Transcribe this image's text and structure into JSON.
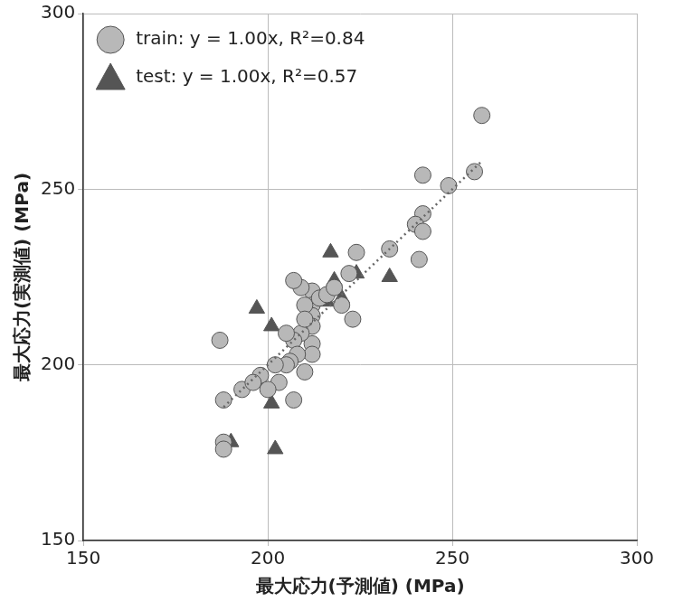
{
  "chart_data": {
    "type": "scatter",
    "x_label": "最大応力(予測値) (MPa)",
    "y_label": "最大応力(実測値) (MPa)",
    "xlim": [
      150,
      300
    ],
    "ylim": [
      150,
      300
    ],
    "xticks": [
      150,
      200,
      250,
      300
    ],
    "yticks": [
      150,
      200,
      250,
      300
    ],
    "grid": true,
    "legend": "upper left",
    "series": [
      {
        "name": "train: y = 1.00x, R²=0.84",
        "color": "#b8b8b8",
        "marker": "circle",
        "x": [
          258,
          256,
          249,
          242,
          242,
          240,
          242,
          241,
          233,
          224,
          222,
          220,
          223,
          212,
          212,
          212,
          212,
          212,
          212,
          209,
          207,
          210,
          209,
          207,
          208,
          206,
          205,
          202,
          210,
          203,
          207,
          198,
          193,
          188,
          187,
          188,
          188,
          200,
          196,
          214,
          216,
          218,
          210,
          205
        ],
        "values": [
          271,
          255,
          251,
          254,
          243,
          240,
          238,
          230,
          233,
          232,
          226,
          217,
          213,
          221,
          217,
          214,
          211,
          206,
          203,
          222,
          224,
          217,
          209,
          207,
          203,
          201,
          200,
          200,
          198,
          195,
          190,
          197,
          193,
          190,
          207,
          178,
          176,
          193,
          195,
          219,
          220,
          222,
          213,
          209
        ]
      },
      {
        "name": "test: y = 1.00x, R²=0.57",
        "color": "#555555",
        "marker": "triangle",
        "x": [
          190,
          197,
          198,
          201,
          201,
          202,
          217,
          218,
          220,
          224,
          233,
          216
        ],
        "values": [
          178,
          216,
          195,
          211,
          189,
          176,
          232,
          224,
          219,
          226,
          225,
          218
        ]
      }
    ],
    "trend_line": {
      "x": [
        188,
        258
      ],
      "values": [
        188,
        258
      ],
      "color": "#666666",
      "line_style": "dotted"
    }
  }
}
